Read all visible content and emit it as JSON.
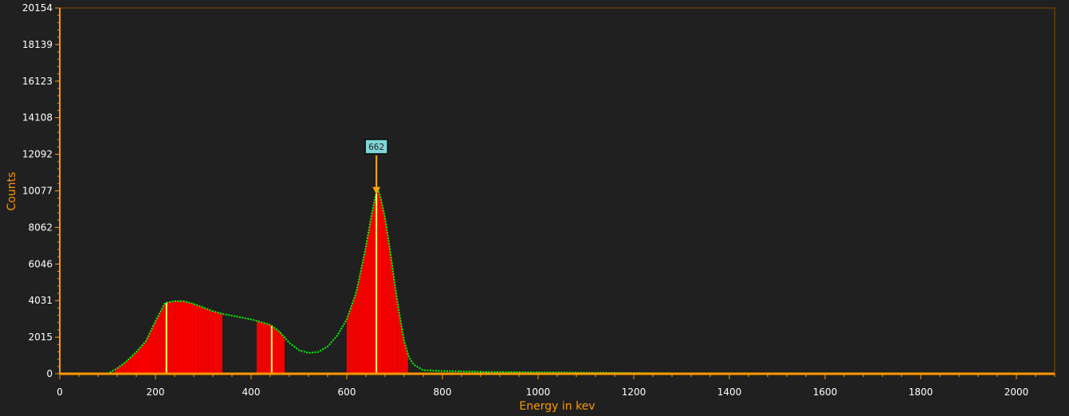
{
  "chart_data": {
    "type": "area",
    "title": "",
    "xlabel": "Energy in kev",
    "ylabel": "Counts",
    "xlim": [
      0,
      2080
    ],
    "ylim": [
      0,
      20154
    ],
    "x_ticks": [
      "0",
      "200",
      "400",
      "600",
      "800",
      "1000",
      "1200",
      "1400",
      "1600",
      "1800",
      "2000"
    ],
    "y_ticks": [
      "0",
      "2015",
      "4031",
      "6046",
      "8062",
      "10077",
      "12092",
      "14108",
      "16123",
      "18139",
      "20154"
    ],
    "grid": false,
    "spectrum": {
      "x": [
        0,
        100,
        120,
        140,
        160,
        180,
        200,
        210,
        220,
        240,
        260,
        280,
        300,
        320,
        340,
        360,
        380,
        400,
        420,
        440,
        460,
        480,
        500,
        520,
        540,
        560,
        580,
        600,
        620,
        640,
        650,
        660,
        665,
        670,
        680,
        690,
        700,
        710,
        720,
        730,
        740,
        760,
        800,
        900,
        1000,
        1100,
        1200,
        1300,
        1400,
        1600,
        1800,
        2000,
        2080
      ],
      "y": [
        0,
        0,
        300,
        700,
        1200,
        1800,
        2900,
        3400,
        3900,
        4000,
        4000,
        3850,
        3650,
        3450,
        3300,
        3200,
        3100,
        3000,
        2850,
        2700,
        2300,
        1700,
        1300,
        1150,
        1200,
        1500,
        2100,
        3000,
        4500,
        7000,
        8500,
        9800,
        10150,
        9800,
        8600,
        6900,
        5000,
        3300,
        1800,
        900,
        500,
        200,
        150,
        100,
        80,
        60,
        40,
        20,
        10,
        5,
        0,
        0,
        0
      ],
      "color": "#00ff00"
    },
    "regions": [
      {
        "x_start": 115,
        "x_end": 340
      },
      {
        "x_start": 412,
        "x_end": 470
      },
      {
        "x_start": 600,
        "x_end": 728
      }
    ],
    "region_color": "#ff0000",
    "markers": [
      223,
      443,
      662
    ],
    "marker_color": "#ffff66",
    "peak": {
      "label": "662",
      "x": 662
    },
    "axis_color": "#ff9900",
    "background": "#202020"
  }
}
